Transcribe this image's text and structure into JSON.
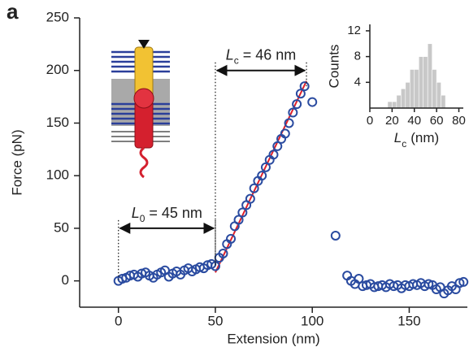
{
  "panel_label": "a",
  "chart_data": [
    {
      "type": "scatter",
      "x_label": "Extension (nm)",
      "y_label": "Force (pN)",
      "xlim": [
        -20,
        180
      ],
      "ylim": [
        -25,
        250
      ],
      "xticks": [
        0,
        50,
        100,
        150
      ],
      "yticks": [
        0,
        50,
        100,
        150,
        200,
        250
      ],
      "x": [
        0,
        2,
        4,
        6,
        8,
        10,
        12,
        14,
        16,
        18,
        20,
        22,
        24,
        26,
        28,
        30,
        32,
        34,
        36,
        38,
        40,
        42,
        44,
        46,
        48,
        50,
        52,
        54,
        56,
        58,
        60,
        62,
        64,
        66,
        68,
        70,
        72,
        74,
        76,
        78,
        80,
        82,
        84,
        86,
        88,
        90,
        92,
        94,
        96,
        100,
        112,
        118,
        120,
        122,
        124,
        126,
        128,
        130,
        132,
        134,
        136,
        138,
        140,
        142,
        144,
        146,
        148,
        150,
        152,
        154,
        156,
        158,
        160,
        162,
        164,
        166,
        168,
        170,
        172,
        174,
        176,
        178
      ],
      "values": [
        0,
        2,
        3,
        5,
        6,
        4,
        7,
        8,
        5,
        3,
        6,
        8,
        10,
        4,
        7,
        9,
        6,
        10,
        12,
        9,
        11,
        13,
        12,
        15,
        16,
        14,
        22,
        26,
        35,
        40,
        52,
        58,
        65,
        72,
        78,
        88,
        95,
        100,
        108,
        115,
        120,
        128,
        135,
        140,
        150,
        160,
        168,
        178,
        185,
        170,
        43,
        5,
        0,
        -3,
        2,
        -5,
        -4,
        -3,
        -6,
        -5,
        -4,
        -6,
        -3,
        -5,
        -4,
        -7,
        -4,
        -5,
        -3,
        -4,
        -2,
        -5,
        -3,
        -4,
        -8,
        -6,
        -12,
        -9,
        -5,
        -8,
        -2,
        -1
      ],
      "color": "#2a4ba0",
      "fit": {
        "x": [
          50,
          97
        ],
        "values": [
          8,
          190
        ],
        "color": "#e0202a"
      },
      "annotations": [
        {
          "symbol": "L",
          "subscript": "0",
          "text": "= 45 nm",
          "x": [
            0,
            50
          ],
          "y": 50
        },
        {
          "symbol": "L",
          "subscript": "c",
          "text": "= 46 nm",
          "x": [
            50,
            97
          ],
          "y": 200
        }
      ]
    },
    {
      "type": "histogram",
      "y_label": "Counts",
      "x_label": {
        "symbol": "L",
        "subscript": "c",
        "text": "(nm)"
      },
      "bins": [
        16,
        20,
        24,
        28,
        32,
        36,
        40,
        44,
        48,
        52,
        56,
        60,
        64,
        68
      ],
      "values": [
        1,
        1,
        2,
        3,
        4,
        6,
        6,
        8,
        8,
        10,
        6,
        4,
        2
      ],
      "color": "#c8c8c8",
      "xlim": [
        0,
        84
      ],
      "ylim": [
        0,
        13
      ],
      "xticks": [
        0,
        20,
        40,
        60,
        80
      ],
      "yticks": [
        4,
        8,
        12
      ]
    }
  ]
}
